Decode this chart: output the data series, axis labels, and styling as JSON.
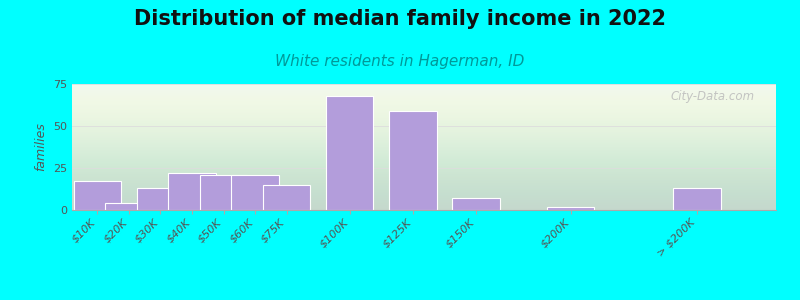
{
  "title": "Distribution of median family income in 2022",
  "subtitle": "White residents in Hagerman, ID",
  "ylabel": "families",
  "background_outer": "#00FFFF",
  "bar_color": "#b39ddb",
  "bar_edge_color": "#ffffff",
  "categories": [
    "$10K",
    "$20K",
    "$30K",
    "$40K",
    "$50K",
    "$60K",
    "$75K",
    "$100K",
    "$125K",
    "$150K",
    "$200K",
    "> $200K"
  ],
  "values": [
    17,
    4,
    13,
    22,
    21,
    21,
    15,
    68,
    59,
    7,
    2,
    13
  ],
  "x_positions": [
    0,
    1,
    2,
    3,
    4,
    5,
    6,
    8,
    10,
    12,
    15,
    19
  ],
  "bar_width": 1.5,
  "xlim": [
    -0.8,
    21.5
  ],
  "ylim": [
    0,
    75
  ],
  "yticks": [
    0,
    25,
    50,
    75
  ],
  "watermark": "City-Data.com",
  "title_fontsize": 15,
  "subtitle_fontsize": 11,
  "ylabel_fontsize": 9,
  "tick_fontsize": 8
}
